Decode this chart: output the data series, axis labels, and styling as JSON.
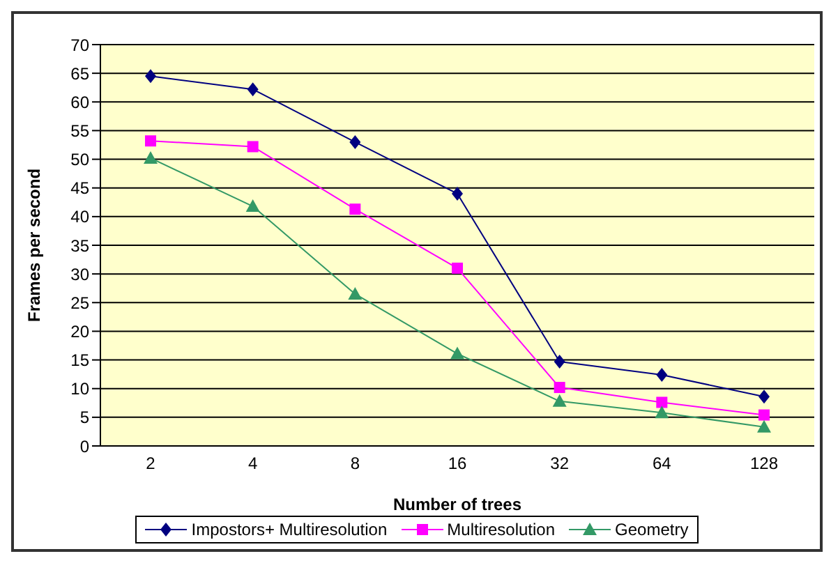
{
  "chart_data": {
    "type": "line",
    "xlabel": "Number of trees",
    "ylabel": "Frames per second",
    "categories": [
      "2",
      "4",
      "8",
      "16",
      "32",
      "64",
      "128"
    ],
    "series": [
      {
        "name": "Impostors+ Multiresolution",
        "color": "#000080",
        "marker": "diamond",
        "values": [
          64.5,
          62.2,
          53,
          44,
          14.7,
          12.4,
          8.6
        ]
      },
      {
        "name": "Multiresolution",
        "color": "#ff00ff",
        "marker": "square",
        "values": [
          53.2,
          52.2,
          41.3,
          31,
          10.2,
          7.6,
          5.4
        ]
      },
      {
        "name": "Geometry",
        "color": "#339966",
        "marker": "triangle",
        "values": [
          50.2,
          41.8,
          26.5,
          16.1,
          7.8,
          5.8,
          3.3
        ]
      }
    ],
    "ylim": [
      0,
      70
    ],
    "yticks": [
      0,
      5,
      10,
      15,
      20,
      25,
      30,
      35,
      40,
      45,
      50,
      55,
      60,
      65,
      70
    ],
    "grid": "y",
    "legend": "bottom"
  }
}
